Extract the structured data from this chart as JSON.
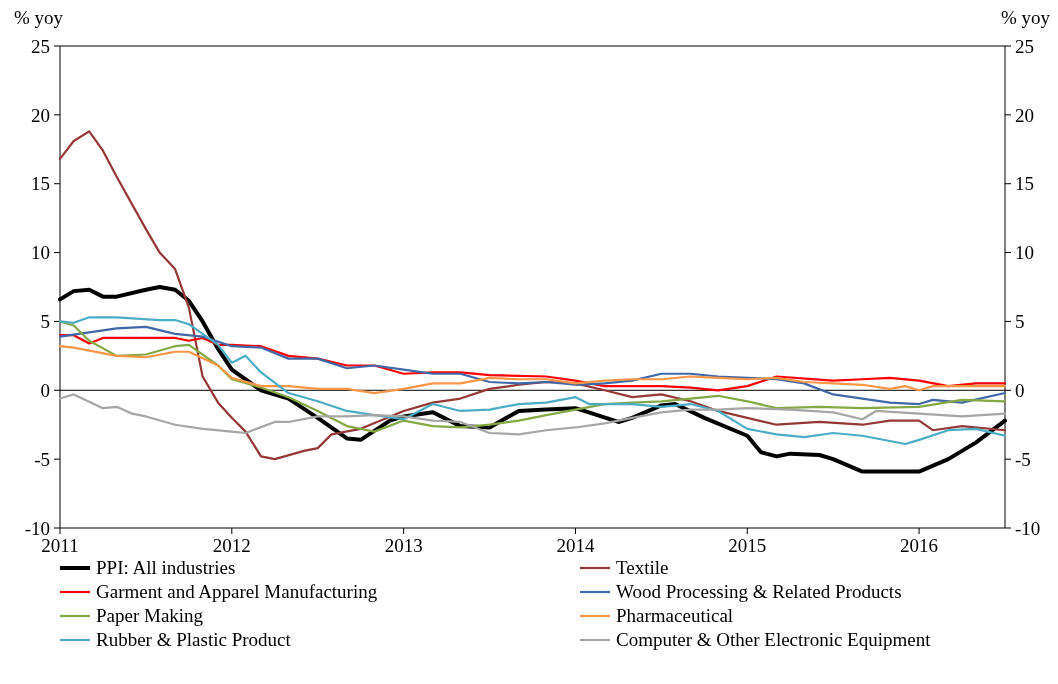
{
  "chart_data": {
    "type": "line",
    "ylabel": "% yoy",
    "y2label": "% yoy",
    "xlim": [
      2011,
      2016.5
    ],
    "xticks": [
      2011,
      2012,
      2013,
      2014,
      2015,
      2016
    ],
    "ylim": [
      -10,
      25
    ],
    "yticks": [
      -10,
      -5,
      0,
      5,
      10,
      15,
      20,
      25
    ],
    "y2lim": [
      -10,
      25
    ],
    "y2ticks": [
      -10,
      -5,
      0,
      5,
      10,
      15,
      20,
      25
    ],
    "grid": false,
    "legend": "bottom",
    "ref_lines": [
      {
        "axis": "y",
        "value": 0,
        "color": "#000000"
      }
    ],
    "series": [
      {
        "name": "PPI: All industries",
        "color": "#000000",
        "x": [
          2011,
          2011.08,
          2011.17,
          2011.25,
          2011.33,
          2011.5,
          2011.58,
          2011.67,
          2011.75,
          2011.83,
          2011.92,
          2012,
          2012.17,
          2012.33,
          2012.5,
          2012.67,
          2012.75,
          2012.92,
          2013,
          2013.17,
          2013.33,
          2013.5,
          2013.67,
          2013.83,
          2014,
          2014.25,
          2014.33,
          2014.5,
          2014.58,
          2014.75,
          2015,
          2015.08,
          2015.17,
          2015.25,
          2015.42,
          2015.5,
          2015.67,
          2016,
          2016.17,
          2016.33,
          2016.5
        ],
        "values": [
          6.6,
          7.2,
          7.3,
          6.8,
          6.8,
          7.3,
          7.5,
          7.3,
          6.5,
          5,
          3,
          1.5,
          0,
          -0.6,
          -2,
          -3.5,
          -3.6,
          -2.2,
          -1.9,
          -1.6,
          -2.6,
          -2.7,
          -1.5,
          -1.4,
          -1.3,
          -2.3,
          -2,
          -1.1,
          -1,
          -2,
          -3.3,
          -4.5,
          -4.8,
          -4.6,
          -4.7,
          -5,
          -5.9,
          -5.9,
          -5,
          -3.8,
          -2.2
        ]
      },
      {
        "name": "Textile",
        "color": "#953735",
        "x": [
          2011,
          2011.08,
          2011.17,
          2011.25,
          2011.33,
          2011.5,
          2011.58,
          2011.67,
          2011.75,
          2011.83,
          2011.92,
          2012,
          2012.08,
          2012.17,
          2012.25,
          2012.42,
          2012.5,
          2012.58,
          2012.75,
          2013,
          2013.17,
          2013.33,
          2013.5,
          2013.67,
          2013.83,
          2014,
          2014.17,
          2014.33,
          2014.5,
          2014.67,
          2014.83,
          2015,
          2015.17,
          2015.42,
          2015.67,
          2015.83,
          2016,
          2016.08,
          2016.25,
          2016.5
        ],
        "values": [
          16.8,
          18.1,
          18.8,
          17.4,
          15.5,
          11.7,
          10,
          8.8,
          6,
          1,
          -0.9,
          -2,
          -3,
          -4.8,
          -5,
          -4.4,
          -4.2,
          -3.2,
          -2.8,
          -1.5,
          -0.9,
          -0.6,
          0.1,
          0.4,
          0.6,
          0.5,
          0,
          -0.5,
          -0.3,
          -0.8,
          -1.5,
          -2,
          -2.5,
          -2.3,
          -2.5,
          -2.2,
          -2.2,
          -2.9,
          -2.6,
          -2.9
        ]
      },
      {
        "name": "Garment and Apparel Manufacturing",
        "color": "#ff0000",
        "x": [
          2011,
          2011.08,
          2011.17,
          2011.25,
          2011.5,
          2011.67,
          2011.75,
          2011.83,
          2011.92,
          2012,
          2012.17,
          2012.33,
          2012.5,
          2012.67,
          2012.83,
          2013,
          2013.17,
          2013.33,
          2013.5,
          2013.83,
          2014,
          2014.17,
          2014.5,
          2014.67,
          2014.83,
          2015,
          2015.17,
          2015.5,
          2015.67,
          2015.83,
          2016,
          2016.17,
          2016.33,
          2016.5
        ],
        "values": [
          4,
          4,
          3.4,
          3.8,
          3.8,
          3.8,
          3.6,
          3.8,
          3.3,
          3.3,
          3.2,
          2.5,
          2.3,
          1.8,
          1.8,
          1.2,
          1.3,
          1.3,
          1.1,
          1,
          0.7,
          0.3,
          0.3,
          0.2,
          0,
          0.3,
          1,
          0.7,
          0.8,
          0.9,
          0.7,
          0.3,
          0.5,
          0.5
        ]
      },
      {
        "name": "Wood Processing & Related Products",
        "color": "#4068a8",
        "x": [
          2011,
          2011.17,
          2011.33,
          2011.5,
          2011.67,
          2011.83,
          2012,
          2012.17,
          2012.33,
          2012.5,
          2012.67,
          2012.83,
          2013,
          2013.17,
          2013.33,
          2013.5,
          2013.67,
          2013.83,
          2014,
          2014.17,
          2014.33,
          2014.5,
          2014.67,
          2014.83,
          2015,
          2015.17,
          2015.33,
          2015.5,
          2015.67,
          2015.83,
          2016,
          2016.08,
          2016.25,
          2016.5
        ],
        "values": [
          3.9,
          4.2,
          4.5,
          4.6,
          4.1,
          3.9,
          3.2,
          3.1,
          2.3,
          2.3,
          1.6,
          1.8,
          1.5,
          1.2,
          1.2,
          0.6,
          0.5,
          0.6,
          0.4,
          0.5,
          0.7,
          1.2,
          1.2,
          1,
          0.9,
          0.8,
          0.5,
          -0.3,
          -0.6,
          -0.9,
          -1,
          -0.7,
          -0.9,
          -0.2
        ]
      },
      {
        "name": "Paper Making",
        "color": "#84a844",
        "x": [
          2011,
          2011.08,
          2011.17,
          2011.33,
          2011.5,
          2011.67,
          2011.75,
          2011.92,
          2012,
          2012.17,
          2012.33,
          2012.5,
          2012.67,
          2012.83,
          2013,
          2013.17,
          2013.33,
          2013.5,
          2013.67,
          2013.83,
          2014,
          2014.17,
          2014.33,
          2014.5,
          2014.67,
          2014.83,
          2015,
          2015.17,
          2015.42,
          2015.67,
          2016,
          2016.25,
          2016.5
        ],
        "values": [
          5,
          4.7,
          3.6,
          2.5,
          2.6,
          3.2,
          3.3,
          1.8,
          0.8,
          0.2,
          -0.5,
          -1.5,
          -2.6,
          -3,
          -2.2,
          -2.6,
          -2.7,
          -2.5,
          -2.2,
          -1.8,
          -1.4,
          -1,
          -0.9,
          -0.8,
          -0.6,
          -0.4,
          -0.8,
          -1.3,
          -1.2,
          -1.3,
          -1.2,
          -0.7,
          -0.8
        ]
      },
      {
        "name": "Pharmaceutical",
        "color": "#f79646",
        "x": [
          2011,
          2011.08,
          2011.33,
          2011.5,
          2011.67,
          2011.75,
          2011.92,
          2012,
          2012.17,
          2012.33,
          2012.5,
          2012.67,
          2012.83,
          2013,
          2013.17,
          2013.33,
          2013.5,
          2013.67,
          2013.83,
          2014,
          2014.17,
          2014.33,
          2014.5,
          2014.67,
          2014.83,
          2015,
          2015.17,
          2015.33,
          2015.5,
          2015.67,
          2015.83,
          2015.92,
          2016,
          2016.08,
          2016.25,
          2016.5
        ],
        "values": [
          3.2,
          3.1,
          2.5,
          2.4,
          2.8,
          2.8,
          1.8,
          0.9,
          0.3,
          0.3,
          0.1,
          0.1,
          -0.2,
          0.1,
          0.5,
          0.5,
          0.9,
          0.8,
          0.8,
          0.5,
          0.7,
          0.8,
          0.8,
          1,
          0.9,
          0.8,
          0.9,
          0.6,
          0.5,
          0.4,
          0.1,
          0.3,
          0,
          0.3,
          0.3,
          0.3
        ]
      },
      {
        "name": "Rubber & Plastic Product",
        "color": "#4bacc6",
        "x": [
          2011,
          2011.08,
          2011.17,
          2011.33,
          2011.58,
          2011.67,
          2011.75,
          2011.92,
          2012,
          2012.08,
          2012.17,
          2012.33,
          2012.5,
          2012.67,
          2012.83,
          2013,
          2013.17,
          2013.33,
          2013.5,
          2013.67,
          2013.83,
          2014,
          2014.08,
          2014.33,
          2014.5,
          2014.67,
          2014.83,
          2015,
          2015.17,
          2015.33,
          2015.5,
          2015.67,
          2015.92,
          2016,
          2016.17,
          2016.33,
          2016.5
        ],
        "values": [
          5,
          4.9,
          5.3,
          5.3,
          5.1,
          5.1,
          4.8,
          3.3,
          2,
          2.5,
          1.3,
          -0.2,
          -0.8,
          -1.5,
          -1.8,
          -2.1,
          -1,
          -1.5,
          -1.4,
          -1,
          -0.9,
          -0.5,
          -1,
          -1,
          -1.2,
          -1,
          -1.5,
          -2.8,
          -3.2,
          -3.4,
          -3.1,
          -3.3,
          -3.9,
          -3.6,
          -2.9,
          -2.8,
          -3.3
        ]
      },
      {
        "name": "Computer & Other Electronic Equipment",
        "color": "#a6a6a6",
        "x": [
          2011,
          2011.08,
          2011.25,
          2011.33,
          2011.42,
          2011.5,
          2011.67,
          2011.83,
          2012,
          2012.08,
          2012.25,
          2012.33,
          2012.5,
          2012.67,
          2012.83,
          2013,
          2013.17,
          2013.33,
          2013.5,
          2013.67,
          2013.83,
          2014,
          2014.17,
          2014.33,
          2014.5,
          2014.67,
          2014.83,
          2015,
          2015.25,
          2015.5,
          2015.67,
          2015.75,
          2016,
          2016.25,
          2016.5
        ],
        "values": [
          -0.6,
          -0.3,
          -1.3,
          -1.2,
          -1.7,
          -1.9,
          -2.5,
          -2.8,
          -3,
          -3.1,
          -2.3,
          -2.3,
          -1.9,
          -1.9,
          -1.8,
          -1.9,
          -2.2,
          -2.3,
          -3.1,
          -3.2,
          -2.9,
          -2.7,
          -2.4,
          -2,
          -1.6,
          -1.4,
          -1.4,
          -1.3,
          -1.4,
          -1.6,
          -2.1,
          -1.5,
          -1.7,
          -1.9,
          -1.7
        ]
      }
    ]
  }
}
